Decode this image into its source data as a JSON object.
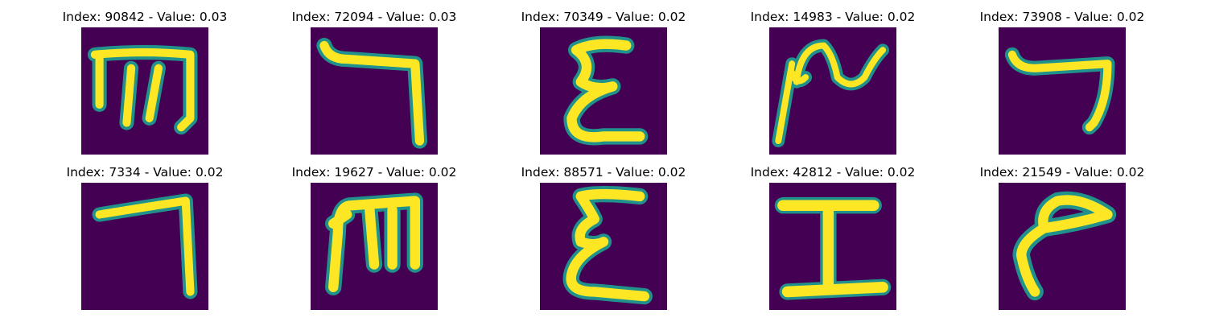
{
  "panels": [
    {
      "title": "Index: 90842 - Value: 0.03",
      "glyph": "m-shape"
    },
    {
      "title": "Index: 72094 - Value: 0.03",
      "glyph": "hook-shape"
    },
    {
      "title": "Index: 70349 - Value: 0.02",
      "glyph": "epsilon-shape"
    },
    {
      "title": "Index: 14983 - Value: 0.02",
      "glyph": "tilde-stem-shape"
    },
    {
      "title": "Index: 73908 - Value: 0.02",
      "glyph": "short-hook-shape"
    },
    {
      "title": "Index: 7334 - Value: 0.02",
      "glyph": "hook-shape"
    },
    {
      "title": "Index: 19627 - Value: 0.02",
      "glyph": "m-shape"
    },
    {
      "title": "Index: 88571 - Value: 0.02",
      "glyph": "epsilon-shape"
    },
    {
      "title": "Index: 42812 - Value: 0.02",
      "glyph": "i-beam-shape"
    },
    {
      "title": "Index: 21549 - Value: 0.02",
      "glyph": "curl-shape"
    }
  ],
  "colors": {
    "background": "#440154",
    "stroke": "#fde725",
    "edge": "#21918c"
  }
}
